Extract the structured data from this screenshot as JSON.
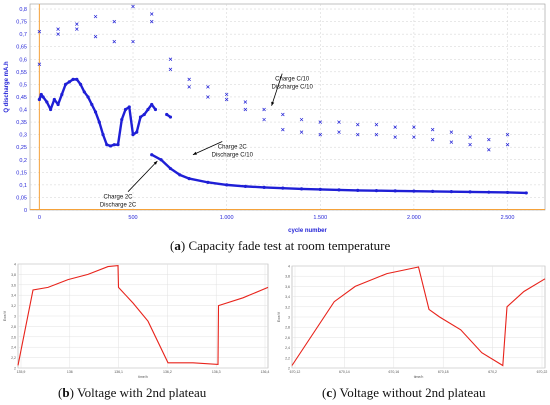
{
  "figure_a": {
    "label": "a",
    "caption": "Capacity fade test at room temperature"
  },
  "figure_b": {
    "label": "b",
    "caption": "Voltage with 2nd plateau"
  },
  "figure_c": {
    "label": "c",
    "caption": "Voltage without 2nd plateau"
  },
  "chart_data": [
    {
      "type": "scatter",
      "xlabel": "cycle number",
      "ylabel": "Q discharge mA.h",
      "xlim": [
        -50,
        2700
      ],
      "ylim": [
        0,
        0.82
      ],
      "xticks": [
        0,
        500,
        1000,
        1500,
        2000,
        2500
      ],
      "xtick_labels": [
        "0",
        "500",
        "1.000",
        "1.500",
        "2.000",
        "2.500"
      ],
      "yticks": [
        0,
        0.05,
        0.1,
        0.15,
        0.2,
        0.25,
        0.3,
        0.35,
        0.4,
        0.45,
        0.5,
        0.55,
        0.6,
        0.65,
        0.7,
        0.75,
        0.8
      ],
      "ytick_labels": [
        "0",
        "0,05",
        "0,1",
        "0,15",
        "0,2",
        "0,25",
        "0,3",
        "0,35",
        "0,4",
        "0,45",
        "0,5",
        "0,55",
        "0,6",
        "0,65",
        "0,7",
        "0,75",
        "0,8"
      ],
      "grid": true,
      "colors": {
        "data": "#1f1fd6",
        "axis": "#f5a23a",
        "grid": "#d0d0d0"
      },
      "annotations": [
        {
          "text": [
            "Charge C/10",
            "Discharge C/10"
          ],
          "x": 1350,
          "y": 0.515
        },
        {
          "text": [
            "Charge 2C",
            "Discharge C/10"
          ],
          "x": 1030,
          "y": 0.245
        },
        {
          "text": [
            "Charge 2C",
            "Discharge 2C"
          ],
          "x": 420,
          "y": 0.045
        }
      ],
      "series": [
        {
          "marker": "dots",
          "values_desc": "2C / 2C cycling",
          "x": [
            0,
            10,
            20,
            40,
            60,
            80,
            100,
            120,
            140,
            160,
            180,
            200,
            220,
            240,
            260,
            280,
            300,
            320,
            340,
            360,
            380,
            400,
            420,
            440,
            460,
            480,
            500,
            520,
            540,
            560,
            580,
            600,
            620,
            640,
            660,
            680,
            700
          ],
          "y": [
            0.44,
            0.46,
            0.45,
            0.43,
            0.4,
            0.44,
            0.42,
            0.46,
            0.5,
            0.51,
            0.52,
            0.52,
            0.5,
            0.47,
            0.45,
            0.42,
            0.39,
            0.35,
            0.3,
            0.26,
            0.255,
            0.26,
            0.26,
            0.36,
            0.4,
            0.41,
            0.3,
            0.31,
            0.37,
            0.38,
            0.4,
            0.42,
            0.4,
            null,
            null,
            0.38,
            0.37
          ]
        },
        {
          "marker": "dots",
          "values_desc": "2C charge / 2C discharge long run",
          "x": [
            600,
            650,
            700,
            750,
            800,
            900,
            1000,
            1100,
            1200,
            1300,
            1400,
            1500,
            1600,
            1700,
            1800,
            1900,
            2000,
            2100,
            2200,
            2300,
            2400,
            2500,
            2600
          ],
          "y": [
            0.22,
            0.2,
            0.165,
            0.14,
            0.125,
            0.11,
            0.1,
            0.094,
            0.09,
            0.087,
            0.084,
            0.082,
            0.08,
            0.078,
            0.077,
            0.076,
            0.075,
            0.074,
            0.073,
            0.072,
            0.071,
            0.07,
            0.068
          ]
        },
        {
          "marker": "x",
          "values_desc": "C/10 check-up cycles",
          "x": [
            0,
            100,
            200,
            300,
            400,
            500,
            600,
            700,
            800,
            900,
            1000,
            1100,
            1200,
            1300,
            1400,
            1500,
            1600,
            1700,
            1800,
            1900,
            2000,
            2100,
            2200,
            2300,
            2400,
            2500
          ],
          "y": [
            0.71,
            0.72,
            0.74,
            0.77,
            0.75,
            0.81,
            0.78,
            0.6,
            0.52,
            0.49,
            0.46,
            0.43,
            0.4,
            0.38,
            0.36,
            0.35,
            0.35,
            0.34,
            0.34,
            0.33,
            0.33,
            0.32,
            0.31,
            0.29,
            0.28,
            0.3
          ]
        },
        {
          "marker": "x",
          "values_desc": "C/10 check-up cycles second point",
          "x": [
            0,
            100,
            200,
            300,
            400,
            500,
            600,
            700,
            800,
            900,
            1000,
            1100,
            1200,
            1300,
            1400,
            1500,
            1600,
            1700,
            1800,
            1900,
            2000,
            2100,
            2200,
            2300,
            2400,
            2500
          ],
          "y": [
            0.58,
            0.7,
            0.72,
            0.69,
            0.67,
            0.67,
            0.75,
            0.56,
            0.49,
            0.45,
            0.44,
            0.4,
            0.36,
            0.32,
            0.31,
            0.3,
            0.31,
            0.3,
            0.3,
            0.29,
            0.29,
            0.28,
            0.27,
            0.26,
            0.24,
            0.26
          ]
        }
      ]
    },
    {
      "type": "line",
      "xlabel": "time/h",
      "ylabel": "Ewe/V",
      "xtick_labels": [
        "135,9",
        "136",
        "136,1",
        "136,2",
        "136,3",
        "136,4"
      ],
      "ytick_labels": [
        "2",
        "2,2",
        "2,4",
        "2,6",
        "2,8",
        "3",
        "3,2",
        "3,4",
        "3,6",
        "3,8",
        "4"
      ],
      "colors": {
        "line": "#e8231b"
      },
      "series": [
        {
          "x": [
            135.9,
            135.93,
            135.96,
            136.0,
            136.04,
            136.08,
            136.1,
            136.101,
            136.13,
            136.16,
            136.2,
            136.25,
            136.3,
            136.301,
            136.35,
            136.4
          ],
          "y": [
            2.05,
            3.5,
            3.55,
            3.7,
            3.8,
            3.95,
            3.97,
            3.55,
            3.25,
            2.9,
            2.1,
            2.1,
            2.07,
            3.2,
            3.35,
            3.55
          ]
        }
      ]
    },
    {
      "type": "line",
      "xlabel": "time/h",
      "ylabel": "Ewe/V",
      "xtick_labels": [
        "670,12",
        "670,14",
        "670,16",
        "670,18",
        "670,2",
        "670,22"
      ],
      "ytick_labels": [
        "2",
        "2,2",
        "2,4",
        "2,6",
        "2,8",
        "3",
        "3,2",
        "3,4",
        "3,6",
        "3,8",
        "4"
      ],
      "colors": {
        "line": "#e8231b"
      },
      "series": [
        {
          "x": [
            670.11,
            670.13,
            670.14,
            670.155,
            670.17,
            670.175,
            670.18,
            670.19,
            670.2,
            670.21,
            670.212,
            670.22,
            670.23
          ],
          "y": [
            2.05,
            3.3,
            3.6,
            3.85,
            3.98,
            3.15,
            3.0,
            2.75,
            2.3,
            2.05,
            3.2,
            3.5,
            3.75
          ]
        }
      ]
    }
  ]
}
